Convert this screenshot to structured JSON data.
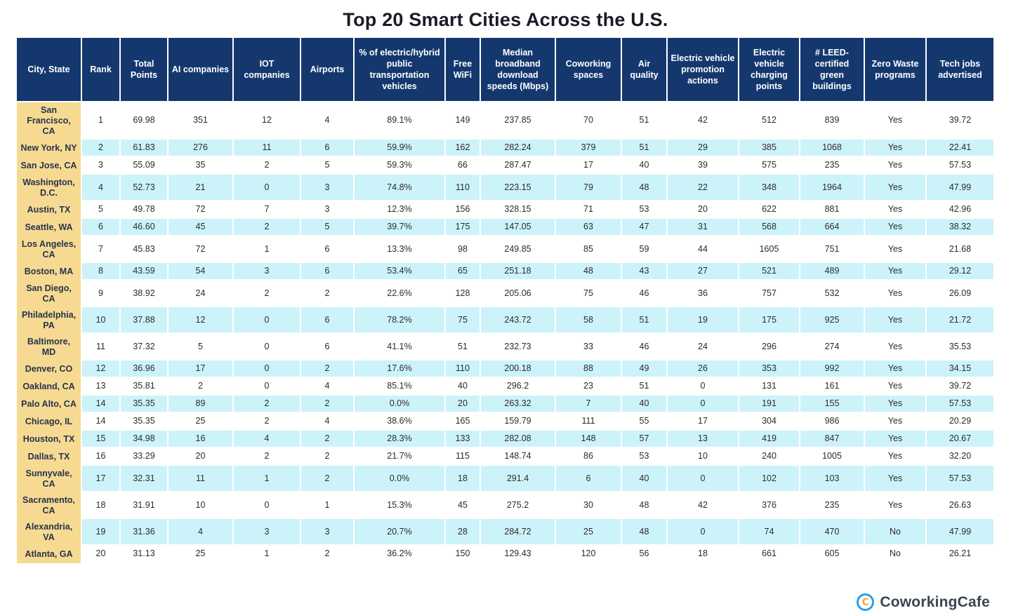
{
  "chart_data": {
    "type": "table",
    "title": "Top 20 Smart Cities Across the U.S.",
    "columns": [
      "City, State",
      "Rank",
      "Total Points",
      "AI companies",
      "IOT companies",
      "Airports",
      "% of electric/hybrid public transportation vehicles",
      "Free WiFi",
      "Median broadband download speeds (Mbps)",
      "Coworking spaces",
      "Air quality",
      "Electric vehicle promotion actions",
      "Electric vehicle charging points",
      "# LEED-certified green buildings",
      "Zero Waste programs",
      "Tech jobs advertised"
    ],
    "rows": [
      [
        "San Francisco, CA",
        "1",
        "69.98",
        "351",
        "12",
        "4",
        "89.1%",
        "149",
        "237.85",
        "70",
        "51",
        "42",
        "512",
        "839",
        "Yes",
        "39.72"
      ],
      [
        "New York, NY",
        "2",
        "61.83",
        "276",
        "11",
        "6",
        "59.9%",
        "162",
        "282.24",
        "379",
        "51",
        "29",
        "385",
        "1068",
        "Yes",
        "22.41"
      ],
      [
        "San Jose, CA",
        "3",
        "55.09",
        "35",
        "2",
        "5",
        "59.3%",
        "66",
        "287.47",
        "17",
        "40",
        "39",
        "575",
        "235",
        "Yes",
        "57.53"
      ],
      [
        "Washington, D.C.",
        "4",
        "52.73",
        "21",
        "0",
        "3",
        "74.8%",
        "110",
        "223.15",
        "79",
        "48",
        "22",
        "348",
        "1964",
        "Yes",
        "47.99"
      ],
      [
        "Austin, TX",
        "5",
        "49.78",
        "72",
        "7",
        "3",
        "12.3%",
        "156",
        "328.15",
        "71",
        "53",
        "20",
        "622",
        "881",
        "Yes",
        "42.96"
      ],
      [
        "Seattle, WA",
        "6",
        "46.60",
        "45",
        "2",
        "5",
        "39.7%",
        "175",
        "147.05",
        "63",
        "47",
        "31",
        "568",
        "664",
        "Yes",
        "38.32"
      ],
      [
        "Los Angeles, CA",
        "7",
        "45.83",
        "72",
        "1",
        "6",
        "13.3%",
        "98",
        "249.85",
        "85",
        "59",
        "44",
        "1605",
        "751",
        "Yes",
        "21.68"
      ],
      [
        "Boston, MA",
        "8",
        "43.59",
        "54",
        "3",
        "6",
        "53.4%",
        "65",
        "251.18",
        "48",
        "43",
        "27",
        "521",
        "489",
        "Yes",
        "29.12"
      ],
      [
        "San Diego, CA",
        "9",
        "38.92",
        "24",
        "2",
        "2",
        "22.6%",
        "128",
        "205.06",
        "75",
        "46",
        "36",
        "757",
        "532",
        "Yes",
        "26.09"
      ],
      [
        "Philadelphia, PA",
        "10",
        "37.88",
        "12",
        "0",
        "6",
        "78.2%",
        "75",
        "243.72",
        "58",
        "51",
        "19",
        "175",
        "925",
        "Yes",
        "21.72"
      ],
      [
        "Baltimore, MD",
        "11",
        "37.32",
        "5",
        "0",
        "6",
        "41.1%",
        "51",
        "232.73",
        "33",
        "46",
        "24",
        "296",
        "274",
        "Yes",
        "35.53"
      ],
      [
        "Denver, CO",
        "12",
        "36.96",
        "17",
        "0",
        "2",
        "17.6%",
        "110",
        "200.18",
        "88",
        "49",
        "26",
        "353",
        "992",
        "Yes",
        "34.15"
      ],
      [
        "Oakland, CA",
        "13",
        "35.81",
        "2",
        "0",
        "4",
        "85.1%",
        "40",
        "296.2",
        "23",
        "51",
        "0",
        "131",
        "161",
        "Yes",
        "39.72"
      ],
      [
        "Palo Alto, CA",
        "14",
        "35.35",
        "89",
        "2",
        "2",
        "0.0%",
        "20",
        "263.32",
        "7",
        "40",
        "0",
        "191",
        "155",
        "Yes",
        "57.53"
      ],
      [
        "Chicago, IL",
        "14",
        "35.35",
        "25",
        "2",
        "4",
        "38.6%",
        "165",
        "159.79",
        "111",
        "55",
        "17",
        "304",
        "986",
        "Yes",
        "20.29"
      ],
      [
        "Houston, TX",
        "15",
        "34.98",
        "16",
        "4",
        "2",
        "28.3%",
        "133",
        "282.08",
        "148",
        "57",
        "13",
        "419",
        "847",
        "Yes",
        "20.67"
      ],
      [
        "Dallas, TX",
        "16",
        "33.29",
        "20",
        "2",
        "2",
        "21.7%",
        "115",
        "148.74",
        "86",
        "53",
        "10",
        "240",
        "1005",
        "Yes",
        "32.20"
      ],
      [
        "Sunnyvale, CA",
        "17",
        "32.31",
        "11",
        "1",
        "2",
        "0.0%",
        "18",
        "291.4",
        "6",
        "40",
        "0",
        "102",
        "103",
        "Yes",
        "57.53"
      ],
      [
        "Sacramento, CA",
        "18",
        "31.91",
        "10",
        "0",
        "1",
        "15.3%",
        "45",
        "275.2",
        "30",
        "48",
        "42",
        "376",
        "235",
        "Yes",
        "26.63"
      ],
      [
        "Alexandria, VA",
        "19",
        "31.36",
        "4",
        "3",
        "3",
        "20.7%",
        "28",
        "284.72",
        "25",
        "48",
        "0",
        "74",
        "470",
        "No",
        "47.99"
      ],
      [
        "Atlanta, GA",
        "20",
        "31.13",
        "25",
        "1",
        "2",
        "36.2%",
        "150",
        "129.43",
        "120",
        "56",
        "18",
        "661",
        "605",
        "No",
        "26.21"
      ]
    ],
    "layout_hints": {
      "first_column_highlight": true,
      "alternating_rows": true,
      "grid": "white gaps between cells"
    }
  },
  "footer": {
    "brand": "CoworkingCafe",
    "logo_letter": "C"
  },
  "colors": {
    "header_bg": "#14386e",
    "header_text": "#ffffff",
    "city_column_bg": "#f7da92",
    "alt_row_bg": "#cdf3fa",
    "title_color": "#1b1b27",
    "logo_blue": "#2d9ee3",
    "logo_orange": "#f5a83c",
    "brand_text": "#3c4450"
  }
}
